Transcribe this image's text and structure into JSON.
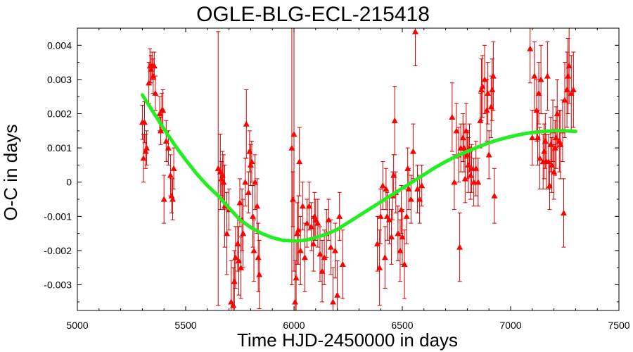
{
  "chart_data": {
    "type": "scatter",
    "title": "OGLE-BLG-ECL-215418",
    "xlabel": "Time HJD-2450000 in days",
    "ylabel": "O-C in days",
    "xlim": [
      5000,
      7500
    ],
    "ylim": [
      -0.00375,
      0.0045
    ],
    "x_ticks": [
      "5000",
      "5500",
      "6000",
      "6500",
      "7000",
      "7500"
    ],
    "x_tick_values": [
      5000,
      5500,
      6000,
      6500,
      7000,
      7500
    ],
    "y_ticks": [
      "0.004",
      "0.003",
      "0.002",
      "0.001",
      "0",
      "-0.001",
      "-0.002",
      "-0.003"
    ],
    "y_tick_values": [
      0.004,
      0.003,
      0.002,
      0.001,
      0,
      -0.001,
      -0.002,
      -0.003
    ],
    "grid": false,
    "colors": {
      "points": "#ff0000",
      "errorbars": "#cc0000",
      "fit": "#22ee22",
      "frame": "#000000"
    },
    "series": [
      {
        "kind": "points_with_errorbars",
        "points": [
          [
            5300,
            0.00175,
            0.0005
          ],
          [
            5305,
            0.0007,
            0.0007
          ],
          [
            5310,
            0.00175,
            0.0006
          ],
          [
            5315,
            0.0009,
            0.0005
          ],
          [
            5320,
            0.001,
            0.0005
          ],
          [
            5330,
            0.0029,
            0.0006
          ],
          [
            5335,
            0.0034,
            0.0005
          ],
          [
            5340,
            0.0033,
            0.0004
          ],
          [
            5345,
            0.0034,
            0.0004
          ],
          [
            5350,
            0.0031,
            0.0005
          ],
          [
            5355,
            0.0034,
            0.0004
          ],
          [
            5360,
            0.0026,
            0.0005
          ],
          [
            5380,
            0.002,
            0.0005
          ],
          [
            5385,
            0.0015,
            0.0004
          ],
          [
            5390,
            0.0021,
            0.0005
          ],
          [
            5395,
            0.0021,
            0.0006
          ],
          [
            5400,
            -0.0005,
            0.0007
          ],
          [
            5410,
            0.0012,
            0.0006
          ],
          [
            5420,
            0.001,
            0.0005
          ],
          [
            5430,
            0.0002,
            0.0006
          ],
          [
            5435,
            -0.0004,
            0.0005
          ],
          [
            5440,
            -0.0005,
            0.0006
          ],
          [
            5445,
            0.0004,
            0.0006
          ],
          [
            5650,
            0.0004,
            0.004
          ],
          [
            5660,
            0.0003,
            0.0011
          ],
          [
            5665,
            0.0001,
            0.0005
          ],
          [
            5670,
            0.0002,
            0.0007
          ],
          [
            5675,
            0.0,
            0.0008
          ],
          [
            5680,
            -0.0007,
            0.0012
          ],
          [
            5690,
            -0.0015,
            0.0012
          ],
          [
            5700,
            -0.0008,
            0.0006
          ],
          [
            5710,
            -0.0035,
            0.0012
          ],
          [
            5720,
            -0.0036,
            0.0011
          ],
          [
            5725,
            -0.0029,
            0.0009
          ],
          [
            5730,
            -0.0022,
            0.0009
          ],
          [
            5740,
            -0.0018,
            0.0008
          ],
          [
            5745,
            -0.0023,
            0.001
          ],
          [
            5750,
            -0.0006,
            0.0007
          ],
          [
            5755,
            -0.0025,
            0.0009
          ],
          [
            5760,
            -0.0011,
            0.0009
          ],
          [
            5765,
            -0.0015,
            0.001
          ],
          [
            5775,
            0.0,
            0.0007
          ],
          [
            5780,
            0.0017,
            0.001
          ],
          [
            5790,
            -0.0003,
            0.0006
          ],
          [
            5795,
            0.0009,
            0.0006
          ],
          [
            5800,
            0.0005,
            0.0006
          ],
          [
            5805,
            0.0006,
            0.0006
          ],
          [
            5810,
            -0.001,
            0.0009
          ],
          [
            5815,
            -0.002,
            0.0009
          ],
          [
            5820,
            0.0,
            0.0008
          ],
          [
            5830,
            -0.0007,
            0.0008
          ],
          [
            5835,
            -0.0022,
            0.001
          ],
          [
            5840,
            -0.0027,
            0.001
          ],
          [
            5990,
            0.001,
            0.004
          ],
          [
            5995,
            -0.0005,
            0.0008
          ],
          [
            6000,
            0.0014,
            0.004
          ],
          [
            6005,
            -0.0035,
            0.0012
          ],
          [
            6010,
            -0.0028,
            0.0011
          ],
          [
            6015,
            -0.0015,
            0.0009
          ],
          [
            6020,
            -0.0014,
            0.001
          ],
          [
            6025,
            0.0006,
            0.001
          ],
          [
            6030,
            -0.002,
            0.001
          ],
          [
            6040,
            -0.0007,
            0.0007
          ],
          [
            6050,
            -0.0022,
            0.001
          ],
          [
            6060,
            -0.0012,
            0.0007
          ],
          [
            6070,
            -0.0007,
            0.0007
          ],
          [
            6080,
            -0.0013,
            0.0007
          ],
          [
            6090,
            -0.0018,
            0.0008
          ],
          [
            6095,
            -0.001,
            0.0007
          ],
          [
            6100,
            -0.0011,
            0.0006
          ],
          [
            6110,
            -0.0012,
            0.0007
          ],
          [
            6120,
            -0.0021,
            0.0008
          ],
          [
            6130,
            -0.0026,
            0.0009
          ],
          [
            6140,
            -0.0022,
            0.0008
          ],
          [
            6150,
            -0.0015,
            0.0007
          ],
          [
            6160,
            -0.0011,
            0.0006
          ],
          [
            6170,
            -0.0019,
            0.0008
          ],
          [
            6180,
            -0.0035,
            0.001
          ],
          [
            6190,
            -0.002,
            0.0008
          ],
          [
            6200,
            -0.0033,
            0.001
          ],
          [
            6210,
            -0.001,
            0.0007
          ],
          [
            6225,
            -0.0024,
            0.001
          ],
          [
            6385,
            -0.0018,
            0.0008
          ],
          [
            6395,
            -0.0025,
            0.0011
          ],
          [
            6400,
            -0.001,
            0.0008
          ],
          [
            6410,
            -0.0001,
            0.0007
          ],
          [
            6420,
            -0.0022,
            0.0009
          ],
          [
            6425,
            -0.0002,
            0.0006
          ],
          [
            6430,
            -0.001,
            0.0007
          ],
          [
            6440,
            -0.0011,
            0.0007
          ],
          [
            6450,
            -0.0016,
            0.0008
          ],
          [
            6455,
            -0.0004,
            0.0007
          ],
          [
            6460,
            0.0002,
            0.0006
          ],
          [
            6465,
            0.0018,
            0.001
          ],
          [
            6470,
            -0.0003,
            0.0006
          ],
          [
            6480,
            -0.0015,
            0.0008
          ],
          [
            6490,
            -0.002,
            0.0009
          ],
          [
            6495,
            -0.0008,
            0.0007
          ],
          [
            6500,
            -0.0016,
            0.0008
          ],
          [
            6510,
            -0.0024,
            0.001
          ],
          [
            6520,
            -0.001,
            0.0008
          ],
          [
            6525,
            0.0004,
            0.0006
          ],
          [
            6530,
            -0.0002,
            0.0006
          ],
          [
            6540,
            -0.0005,
            0.0007
          ],
          [
            6550,
            0.0009,
            0.0008
          ],
          [
            6560,
            0.0044,
            0.001
          ],
          [
            6570,
            -0.0002,
            0.0007
          ],
          [
            6580,
            -0.0005,
            0.0007
          ],
          [
            6590,
            -0.0001,
            0.0006
          ],
          [
            6730,
            0.0019,
            0.001
          ],
          [
            6740,
            0.0,
            0.0008
          ],
          [
            6750,
            0.0015,
            0.0008
          ],
          [
            6760,
            0.0008,
            0.0008
          ],
          [
            6765,
            -0.0019,
            0.001
          ],
          [
            6770,
            0.001,
            0.0007
          ],
          [
            6780,
            0.0013,
            0.0007
          ],
          [
            6785,
            0.001,
            0.0007
          ],
          [
            6790,
            0.0001,
            0.0007
          ],
          [
            6795,
            0.0015,
            0.0008
          ],
          [
            6800,
            0.0008,
            0.0007
          ],
          [
            6805,
            0.0005,
            0.0008
          ],
          [
            6810,
            0.001,
            0.0007
          ],
          [
            6815,
            0.0002,
            0.0007
          ],
          [
            6820,
            0.0004,
            0.0007
          ],
          [
            6830,
            0.0,
            0.0007
          ],
          [
            6840,
            0.0004,
            0.0008
          ],
          [
            6850,
            0.0,
            0.0007
          ],
          [
            6860,
            0.0018,
            0.0008
          ],
          [
            6865,
            0.0027,
            0.0009
          ],
          [
            6870,
            0.0028,
            0.0009
          ],
          [
            6880,
            0.003,
            0.001
          ],
          [
            6890,
            0.0021,
            0.0009
          ],
          [
            6895,
            0.0026,
            0.0009
          ],
          [
            6900,
            0.0008,
            0.0007
          ],
          [
            6910,
            0.0022,
            0.0009
          ],
          [
            6915,
            0.0027,
            0.0009
          ],
          [
            6920,
            0.0031,
            0.001
          ],
          [
            6925,
            -0.0004,
            0.0008
          ],
          [
            7090,
            0.0039,
            0.001
          ],
          [
            7100,
            0.0013,
            0.0008
          ],
          [
            7110,
            0.0031,
            0.001
          ],
          [
            7120,
            0.0021,
            0.0009
          ],
          [
            7125,
            0.0013,
            0.0008
          ],
          [
            7130,
            0.0026,
            0.0009
          ],
          [
            7135,
            0.0007,
            0.0009
          ],
          [
            7140,
            0.003,
            0.001
          ],
          [
            7150,
            0.0006,
            0.0008
          ],
          [
            7155,
            0.0009,
            0.0008
          ],
          [
            7160,
            0.0012,
            0.0008
          ],
          [
            7165,
            0.0006,
            0.0008
          ],
          [
            7170,
            0.0031,
            0.001
          ],
          [
            7175,
            0.0006,
            0.0008
          ],
          [
            7180,
            -0.0001,
            0.0007
          ],
          [
            7185,
            0.0011,
            0.0008
          ],
          [
            7190,
            0.0005,
            0.0008
          ],
          [
            7195,
            0.0015,
            0.0009
          ],
          [
            7200,
            0.0003,
            0.0008
          ],
          [
            7205,
            0.001,
            0.0008
          ],
          [
            7210,
            0.0013,
            0.0009
          ],
          [
            7215,
            0.002,
            0.001
          ],
          [
            7225,
            0.0012,
            0.0009
          ],
          [
            7230,
            0.0011,
            0.001
          ],
          [
            7240,
            0.0015,
            0.0009
          ],
          [
            7245,
            -0.0009,
            0.001
          ],
          [
            7250,
            0.0024,
            0.0011
          ],
          [
            7260,
            0.0027,
            0.0011
          ],
          [
            7265,
            0.0031,
            0.0011
          ],
          [
            7270,
            0.0034,
            0.0011
          ],
          [
            7280,
            0.0026,
            0.0011
          ],
          [
            7290,
            0.0027,
            0.0011
          ]
        ]
      },
      {
        "kind": "fit_line",
        "x": [
          5300,
          5350,
          5400,
          5450,
          5500,
          5550,
          5600,
          5650,
          5700,
          5750,
          5800,
          5850,
          5900,
          5950,
          6000,
          6050,
          6100,
          6150,
          6200,
          6250,
          6300,
          6350,
          6400,
          6450,
          6500,
          6550,
          6600,
          6650,
          6700,
          6750,
          6800,
          6850,
          6900,
          6950,
          7000,
          7050,
          7100,
          7150,
          7200,
          7250,
          7300
        ],
        "y": [
          0.00255,
          0.00205,
          0.00155,
          0.00108,
          0.00065,
          0.00025,
          -0.0001,
          -0.0004,
          -0.00075,
          -0.0011,
          -0.00132,
          -0.0015,
          -0.00162,
          -0.0017,
          -0.00172,
          -0.0017,
          -0.00162,
          -0.00152,
          -0.00138,
          -0.00118,
          -0.00098,
          -0.00078,
          -0.00058,
          -0.00038,
          -0.00018,
          2e-05,
          0.00022,
          0.00042,
          0.0006,
          0.00076,
          0.0009,
          0.00103,
          0.00115,
          0.00125,
          0.00133,
          0.0014,
          0.00145,
          0.00148,
          0.0015,
          0.0015,
          0.00148
        ]
      }
    ]
  }
}
